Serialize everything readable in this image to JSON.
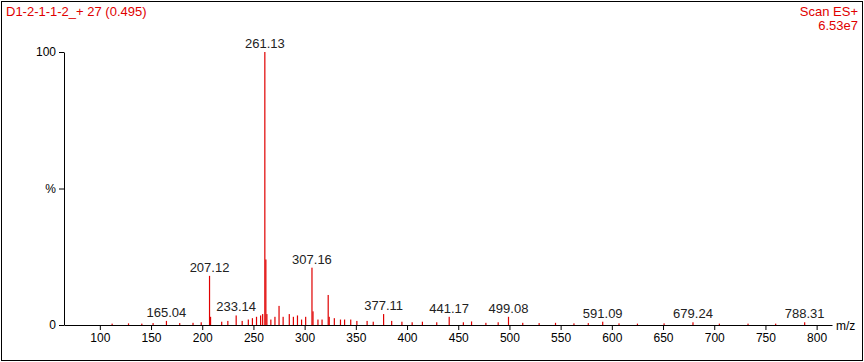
{
  "chart_data": {
    "type": "bar",
    "title": "D1-2-1-1-2_+ 27 (0.495)",
    "subtitle": [
      "Scan ES+",
      "6.53e7"
    ],
    "x_label": "m/z",
    "color": "#e00000",
    "x": [
      112,
      128,
      141,
      152,
      165.04,
      178,
      191,
      199,
      207.12,
      208.12,
      219,
      225,
      233.14,
      239,
      245,
      249,
      253,
      257,
      259,
      261.13,
      262.13,
      263.13,
      267,
      271,
      275,
      279,
      285,
      289,
      293,
      297,
      301,
      307.16,
      308.16,
      313,
      317,
      323,
      324,
      329,
      335,
      339,
      345,
      351,
      361,
      367,
      377.11,
      385,
      395,
      405,
      415,
      429,
      441.17,
      455,
      463,
      477,
      489,
      499.08,
      513,
      529,
      545,
      563,
      577,
      591.09,
      607,
      625,
      651,
      679.24,
      705,
      733,
      760,
      788.31
    ],
    "values": [
      0.5,
      0.6,
      0.5,
      0.7,
      1.5,
      0.7,
      0.8,
      1.0,
      18,
      3,
      1.2,
      1.5,
      3.5,
      1.5,
      2,
      2.5,
      3,
      3.5,
      4,
      100,
      24,
      4,
      2,
      3,
      7,
      3,
      4,
      3,
      3.5,
      2,
      3,
      21,
      5,
      2,
      2,
      11,
      3,
      2.5,
      2,
      2,
      2,
      1.5,
      1.5,
      1.2,
      4,
      1.5,
      1.2,
      1,
      1.2,
      1,
      3,
      1,
      1.3,
      0.8,
      1,
      3,
      0.8,
      0.7,
      0.8,
      0.6,
      0.7,
      1.2,
      0.6,
      0.5,
      0.6,
      1,
      0.5,
      0.5,
      0.5,
      1
    ],
    "xlim": [
      65,
      815
    ],
    "ylim": [
      0,
      100
    ],
    "xticks": [
      100,
      150,
      200,
      250,
      300,
      350,
      400,
      450,
      500,
      550,
      600,
      650,
      700,
      750,
      800
    ],
    "yticks": [
      0,
      {
        "value": 50,
        "label": "%"
      },
      100
    ],
    "annotations": [
      {
        "x": 165.04,
        "y": 1.5,
        "text": "165.04"
      },
      {
        "x": 207.12,
        "y": 18,
        "text": "207.12"
      },
      {
        "x": 233.14,
        "y": 3.5,
        "text": "233.14"
      },
      {
        "x": 261.13,
        "y": 100,
        "text": "261.13"
      },
      {
        "x": 307.16,
        "y": 21,
        "text": "307.16"
      },
      {
        "x": 377.11,
        "y": 4,
        "text": "377.11"
      },
      {
        "x": 441.17,
        "y": 3,
        "text": "441.17"
      },
      {
        "x": 499.08,
        "y": 3,
        "text": "499.08"
      },
      {
        "x": 591.09,
        "y": 1.2,
        "text": "591.09"
      },
      {
        "x": 679.24,
        "y": 1,
        "text": "679.24"
      },
      {
        "x": 788.31,
        "y": 1,
        "text": "788.31"
      }
    ]
  }
}
